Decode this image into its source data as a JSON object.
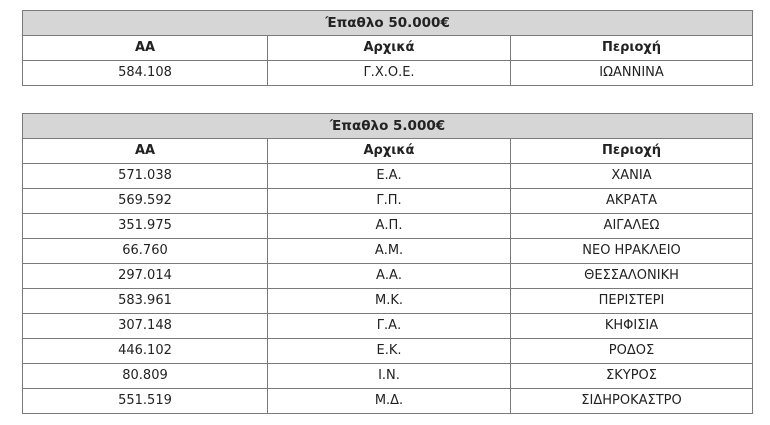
{
  "table1": {
    "title": "Έπαθλο 50.000€",
    "headers": [
      "ΑΑ",
      "Αρχικά",
      "Περιοχή"
    ],
    "rows": [
      [
        "584.108",
        "Γ.Χ.Ο.Ε.",
        "ΙΩΑΝΝΙΝΑ"
      ]
    ]
  },
  "table2": {
    "title": "Έπαθλο 5.000€",
    "headers": [
      "ΑΑ",
      "Αρχικά",
      "Περιοχή"
    ],
    "rows": [
      [
        "571.038",
        "Ε.Α.",
        "ΧΑΝΙΑ"
      ],
      [
        "569.592",
        "Γ.Π.",
        "ΑΚΡΑΤΑ"
      ],
      [
        "351.975",
        "Α.Π.",
        "ΑΙΓΑΛΕΩ"
      ],
      [
        "66.760",
        "Α.Μ.",
        "ΝΕΟ ΗΡΑΚΛΕΙΟ"
      ],
      [
        "297.014",
        "Α.Α.",
        "ΘΕΣΣΑΛΟΝΙΚΗ"
      ],
      [
        "583.961",
        "Μ.Κ.",
        "ΠΕΡΙΣΤΕΡΙ"
      ],
      [
        "307.148",
        "Γ.Α.",
        "ΚΗΦΙΣΙΑ"
      ],
      [
        "446.102",
        "Ε.Κ.",
        "ΡΟΔΟΣ"
      ],
      [
        "80.809",
        "Ι.Ν.",
        "ΣΚΥΡΟΣ"
      ],
      [
        "551.519",
        "Μ.Δ.",
        "ΣΙΔΗΡΟΚΑΣΤΡΟ"
      ]
    ]
  }
}
